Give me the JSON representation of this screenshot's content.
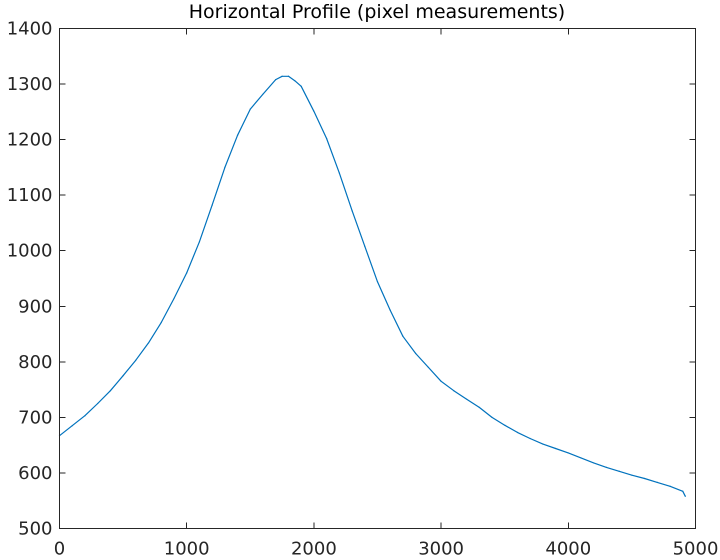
{
  "chart_data": {
    "type": "line",
    "title": "Horizontal Profile (pixel measurements)",
    "xlabel": "",
    "ylabel": "",
    "xlim": [
      0,
      5000
    ],
    "ylim": [
      500,
      1400
    ],
    "xticks": [
      0,
      1000,
      2000,
      3000,
      4000,
      5000
    ],
    "xtick_labels": [
      "0",
      "1000",
      "2000",
      "3000",
      "4000",
      "5000"
    ],
    "yticks": [
      500,
      600,
      700,
      800,
      900,
      1000,
      1100,
      1200,
      1300,
      1400
    ],
    "ytick_labels": [
      "500",
      "600",
      "700",
      "800",
      "900",
      "1000",
      "1100",
      "1200",
      "1300",
      "1400"
    ],
    "grid": false,
    "box": true,
    "line_color": "#0072BD",
    "series": [
      {
        "x": [
          0,
          100,
          200,
          300,
          400,
          500,
          600,
          700,
          800,
          900,
          1000,
          1100,
          1200,
          1300,
          1400,
          1500,
          1600,
          1700,
          1750,
          1800,
          1850,
          1900,
          2000,
          2100,
          2200,
          2300,
          2400,
          2500,
          2600,
          2700,
          2800,
          2900,
          3000,
          3100,
          3200,
          3300,
          3400,
          3500,
          3600,
          3700,
          3800,
          3900,
          4000,
          4100,
          4200,
          4300,
          4400,
          4500,
          4600,
          4700,
          4800,
          4900,
          4920
        ],
        "y": [
          667,
          685,
          703,
          725,
          748,
          775,
          803,
          834,
          871,
          914,
          960,
          1016,
          1082,
          1150,
          1208,
          1255,
          1282,
          1308,
          1314,
          1314,
          1306,
          1296,
          1251,
          1202,
          1140,
          1072,
          1008,
          944,
          893,
          846,
          815,
          790,
          765,
          748,
          733,
          718,
          700,
          686,
          673,
          662,
          652,
          644,
          636,
          627,
          618,
          610,
          603,
          596,
          590,
          583,
          576,
          567,
          558
        ]
      }
    ]
  }
}
